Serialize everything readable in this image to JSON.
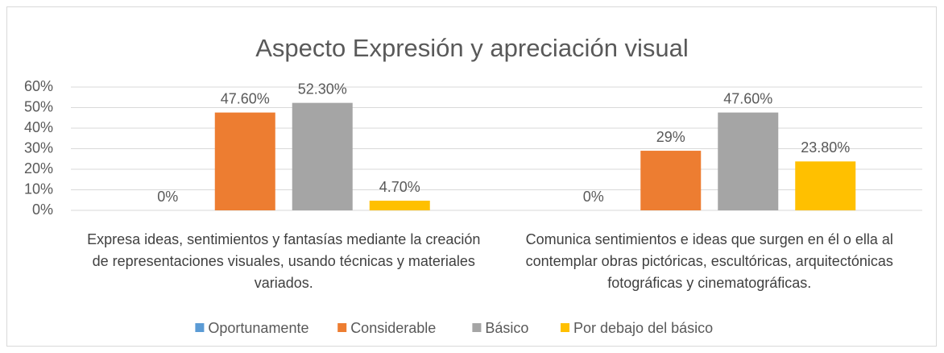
{
  "chart_data": {
    "type": "bar",
    "title": "Aspecto Expresión y apreciación visual",
    "categories": [
      "Expresa ideas, sentimientos y fantasías mediante la creación de representaciones visuales, usando técnicas y materiales variados.",
      "Comunica sentimientos e ideas que surgen en él o ella  al contemplar obras pictóricas, escultóricas, arquitectónicas fotográficas y cinematográficas."
    ],
    "series": [
      {
        "name": "Oportunamente",
        "color": "#5b9bd5",
        "values": [
          0,
          0
        ],
        "value_labels": [
          "0%",
          "0%"
        ]
      },
      {
        "name": "Considerable",
        "color": "#ed7d31",
        "values": [
          47.6,
          29
        ],
        "value_labels": [
          "47.60%",
          "29%"
        ]
      },
      {
        "name": "Básico",
        "color": "#a5a5a5",
        "values": [
          52.3,
          47.6
        ],
        "value_labels": [
          "52.30%",
          "47.60%"
        ]
      },
      {
        "name": "Por debajo del básico",
        "color": "#ffc000",
        "values": [
          4.7,
          23.8
        ],
        "value_labels": [
          "4.70%",
          "23.80%"
        ]
      }
    ],
    "ylim": [
      0,
      60
    ],
    "yticks": [
      {
        "value": 0,
        "label": "0%"
      },
      {
        "value": 10,
        "label": "10%"
      },
      {
        "value": 20,
        "label": "20%"
      },
      {
        "value": 30,
        "label": "30%"
      },
      {
        "value": 40,
        "label": "40%"
      },
      {
        "value": 50,
        "label": "50%"
      },
      {
        "value": 60,
        "label": "60%"
      }
    ],
    "grid": true,
    "legend": "bottom"
  }
}
